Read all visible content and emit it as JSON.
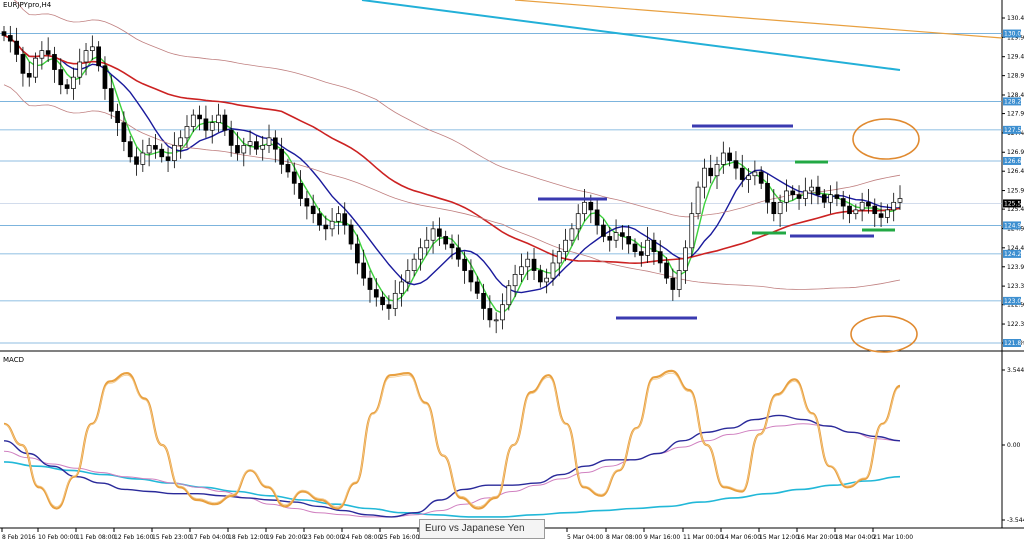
{
  "chart_data": [
    {
      "type": "candlestick",
      "title": "EURJPYpro,H4",
      "y_ticks": [
        "130.46",
        "129.95",
        "129.44",
        "128.94",
        "128.43",
        "127.94",
        "127.43",
        "126.92",
        "126.42",
        "125.91",
        "125.42",
        "124.91",
        "124.40",
        "123.90",
        "123.39",
        "122.90",
        "122.39",
        "121.89"
      ],
      "ylim": [
        121.89,
        130.46
      ],
      "current_price": "125.57",
      "level_badges": [
        {
          "label": "130.05",
          "y": 130.05
        },
        {
          "label": "128.26",
          "y": 128.26
        },
        {
          "label": "127.51",
          "y": 127.51
        },
        {
          "label": "126.69",
          "y": 126.69
        },
        {
          "label": "124.99",
          "y": 124.99
        },
        {
          "label": "124.24",
          "y": 124.24
        },
        {
          "label": "123.00",
          "y": 123.0
        },
        {
          "label": "121.89",
          "y": 121.89
        }
      ],
      "x_labels": [
        "8 Feb 2016",
        "10 Feb 00:00",
        "11 Feb 08:00",
        "12 Feb 16:00",
        "15 Feb 23:00",
        "17 Feb 04:00",
        "18 Feb 12:00",
        "19 Feb 20:00",
        "23 Feb 00:00",
        "24 Feb 08:00",
        "25 Feb 16:00",
        "2",
        "5 Mar 04:00",
        "8 Mar 08:00",
        "9 Mar 16:00",
        "11 Mar 00:00",
        "14 Mar 06:00",
        "15 Mar 12:00",
        "16 Mar 20:00",
        "18 Mar 04:00",
        "21 Mar 10:00"
      ],
      "close": [
        130.0,
        129.85,
        129.5,
        129.0,
        128.9,
        129.4,
        129.6,
        129.5,
        129.1,
        128.7,
        128.6,
        128.9,
        129.3,
        129.6,
        129.7,
        129.2,
        128.6,
        128.0,
        127.7,
        127.2,
        126.8,
        126.6,
        126.9,
        127.1,
        127.0,
        126.8,
        126.7,
        127.1,
        127.3,
        127.6,
        127.9,
        127.8,
        127.5,
        127.7,
        127.9,
        127.5,
        127.1,
        126.9,
        127.1,
        127.2,
        127.0,
        127.1,
        127.3,
        127.0,
        126.6,
        126.4,
        126.1,
        125.7,
        125.5,
        125.3,
        125.0,
        124.9,
        125.1,
        125.3,
        125.0,
        124.5,
        124.0,
        123.6,
        123.3,
        123.1,
        122.9,
        122.8,
        123.2,
        123.5,
        123.8,
        124.1,
        124.4,
        124.6,
        124.9,
        124.7,
        124.5,
        124.4,
        124.1,
        123.8,
        123.5,
        123.2,
        122.8,
        122.5,
        122.5,
        122.9,
        123.4,
        123.7,
        123.9,
        124.1,
        123.8,
        123.5,
        123.6,
        124.0,
        124.3,
        124.6,
        124.9,
        125.3,
        125.6,
        125.4,
        125.0,
        124.7,
        124.6,
        124.8,
        124.7,
        124.5,
        124.3,
        124.2,
        124.6,
        124.3,
        124.0,
        123.6,
        123.3,
        123.8,
        124.4,
        125.3,
        126.0,
        126.5,
        126.3,
        126.6,
        126.9,
        126.7,
        126.5,
        126.2,
        126.3,
        126.4,
        126.1,
        125.6,
        125.3,
        125.6,
        125.9,
        125.8,
        125.7,
        125.9,
        126.0,
        125.8,
        125.6,
        125.8,
        125.7,
        125.5,
        125.3,
        125.4,
        125.6,
        125.5,
        125.3,
        125.2,
        125.4,
        125.6,
        125.7
      ],
      "indicator_lines": {
        "ma_fast_color": "#3dd13d",
        "ma_mid_color": "#1a1a9c",
        "ma_slow_color": "#cc2222",
        "ma_long_color": "#c08080",
        "trend_orange_color": "#e8a040",
        "trend_cyan_color": "#22b0d8"
      },
      "annotation_colors": {
        "blue_marks": "#3a3ab0",
        "green_marks": "#22a844",
        "ellipse": "#e08a30"
      }
    },
    {
      "type": "line",
      "title": "MACD",
      "ylim": [
        -3.5448,
        3.5448
      ],
      "y_ticks": [
        "3.5448",
        "0.00",
        "-3.5448"
      ],
      "series_colors": {
        "oscillator": "#e8a040",
        "signal": "#2a2a9a",
        "signal_alt": "#d080c0",
        "baseline_cyan": "#22b8d8"
      },
      "oscillator": [
        1.0,
        0.0,
        -2.0,
        -3.0,
        -1.5,
        1.0,
        3.0,
        3.4,
        2.2,
        0.0,
        -2.0,
        -2.6,
        -2.8,
        -2.4,
        -1.2,
        -2.0,
        -2.9,
        -2.2,
        -2.6,
        -3.0,
        -1.8,
        1.5,
        3.3,
        3.4,
        2.0,
        -0.5,
        -2.5,
        -3.0,
        -2.5,
        0.0,
        2.5,
        3.3,
        1.0,
        -2.0,
        -2.4,
        -1.2,
        0.8,
        3.2,
        3.5,
        2.6,
        0.0,
        -2.0,
        -2.2,
        0.5,
        2.4,
        3.1,
        1.5,
        -1.0,
        -2.0,
        -1.6,
        1.0,
        2.8
      ],
      "signal": [
        0.2,
        -0.4,
        -1.0,
        -1.5,
        -1.8,
        -2.1,
        -2.2,
        -2.3,
        -2.3,
        -2.4,
        -2.5,
        -2.6,
        -2.7,
        -2.9,
        -3.1,
        -3.3,
        -3.4,
        -3.2,
        -2.6,
        -2.1,
        -1.9,
        -1.9,
        -1.8,
        -1.4,
        -1.0,
        -0.7,
        -0.7,
        -0.4,
        0.2,
        0.6,
        0.8,
        1.2,
        1.4,
        1.2,
        0.9,
        0.6,
        0.4,
        0.2
      ],
      "signal_alt": [
        -0.3,
        -0.6,
        -0.9,
        -1.1,
        -1.3,
        -1.5,
        -1.6,
        -1.8,
        -2.0,
        -2.2,
        -2.5,
        -2.8,
        -3.0,
        -3.2,
        -3.3,
        -3.4,
        -3.4,
        -3.3,
        -3.1,
        -2.8,
        -2.5,
        -2.2,
        -1.9,
        -1.6,
        -1.3,
        -1.0,
        -0.7,
        -0.4,
        -0.1,
        0.2,
        0.5,
        0.7,
        0.9,
        1.0,
        0.9,
        0.6,
        0.3,
        0.2
      ],
      "baseline": [
        -0.8,
        -1.0,
        -1.2,
        -1.4,
        -1.6,
        -1.8,
        -2.0,
        -2.2,
        -2.4,
        -2.6,
        -2.8,
        -3.0,
        -3.2,
        -3.3,
        -3.4,
        -3.4,
        -3.3,
        -3.2,
        -3.1,
        -3.0,
        -2.9,
        -2.7,
        -2.5,
        -2.3,
        -2.1,
        -1.9,
        -1.7,
        -1.5
      ]
    }
  ],
  "tooltip": {
    "text": "Euro vs Japanese Yen"
  }
}
